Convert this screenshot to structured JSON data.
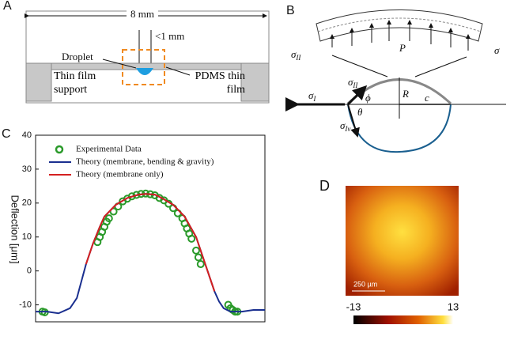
{
  "panel_a": {
    "label": "A",
    "width": "8 mm",
    "gap": "<1 mm",
    "droplet": "Droplet",
    "support": "Thin film support",
    "film": "PDMS thin film"
  },
  "panel_b": {
    "label": "B",
    "sigma": "σ",
    "II": "II",
    "I": "I",
    "Iv": "Iv",
    "P": "P",
    "phi": "ϕ",
    "R": "R",
    "c": "c",
    "theta": "θ"
  },
  "panel_c": {
    "label": "C"
  },
  "chart_data": {
    "type": "line",
    "y_label": "Deflection [μm]",
    "xlim": [
      0,
      100
    ],
    "ylim": [
      -15,
      40
    ],
    "yticks": [
      -10,
      0,
      10,
      20,
      30,
      40
    ],
    "series": [
      {
        "name": "Experimental Data",
        "color": "#2a9a2a",
        "marker": "circle",
        "x": [
          3,
          4,
          27,
          28,
          29,
          30,
          31,
          32,
          34,
          36,
          38,
          40,
          42,
          44,
          46,
          48,
          50,
          52,
          54,
          56,
          58,
          60,
          62,
          64,
          65,
          66,
          67,
          68,
          70,
          71,
          72,
          84,
          85,
          86,
          87,
          88
        ],
        "values": [
          -12,
          -12.2,
          8.5,
          10,
          11.5,
          13,
          14.5,
          15.5,
          17.5,
          19,
          20.5,
          21.3,
          22,
          22.4,
          22.7,
          22.8,
          22.6,
          22.3,
          21.5,
          20.8,
          19.8,
          18.5,
          17,
          15.5,
          14,
          12.5,
          11,
          9.5,
          6,
          4,
          2,
          -10,
          -11,
          -11.5,
          -12,
          -12
        ]
      },
      {
        "name": "Theory (membrane, bending & gravity)",
        "color": "#1a2f8f",
        "x": [
          0,
          5,
          10,
          15,
          18,
          20,
          22,
          25,
          28,
          30,
          35,
          40,
          45,
          48,
          52,
          55,
          60,
          65,
          70,
          72,
          75,
          78,
          80,
          82,
          85,
          90,
          95,
          100
        ],
        "values": [
          -12,
          -12,
          -12.5,
          -11,
          -8,
          -3,
          2,
          8,
          13,
          16,
          19.5,
          21.5,
          22.5,
          22.7,
          22.5,
          21.5,
          19.5,
          16,
          10,
          6,
          0,
          -6,
          -9,
          -11,
          -12,
          -12,
          -11.5,
          -11.5
        ]
      },
      {
        "name": "Theory (membrane only)",
        "color": "#d42020",
        "x": [
          22,
          25,
          28,
          30,
          35,
          40,
          45,
          48,
          52,
          55,
          60,
          65,
          70,
          72,
          75,
          78
        ],
        "values": [
          2,
          8,
          13,
          16,
          19.5,
          21.5,
          22.5,
          22.7,
          22.5,
          21.5,
          19.5,
          16,
          10,
          6,
          0,
          -6
        ]
      }
    ]
  },
  "panel_d": {
    "label": "D",
    "scale_bar": "250 µm",
    "colorbar_ticks": [
      -13,
      13
    ]
  }
}
